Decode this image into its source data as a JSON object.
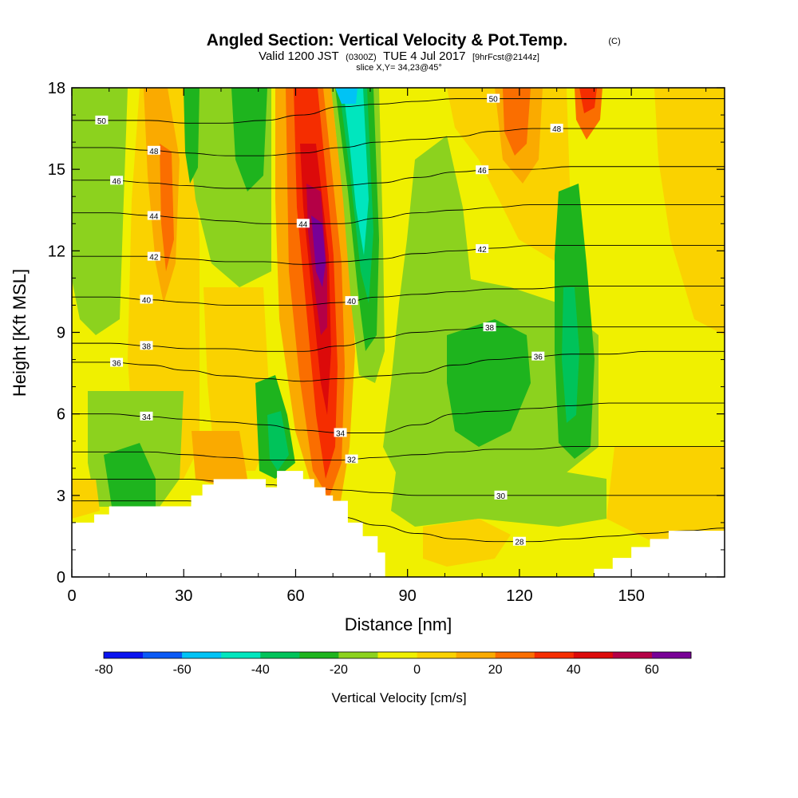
{
  "chart_data": {
    "type": "heatmap",
    "title": "Angled Section: Vertical Velocity & Pot.Temp.",
    "title_mark": "(C)",
    "subtitle_parts": [
      "Valid 1200 JST",
      "(0300Z)",
      "TUE 4 Jul 2017",
      "[9hrFcst@2144z]"
    ],
    "subtitle2": "slice X,Y= 34,23@45°",
    "xlabel": "Distance [nm]",
    "ylabel": "Height [Kft MSL]",
    "xlim": [
      0,
      175
    ],
    "ylim": [
      0,
      18
    ],
    "xticks": [
      "0",
      "30",
      "60",
      "90",
      "120",
      "150"
    ],
    "yticks": [
      "0",
      "3",
      "6",
      "9",
      "12",
      "15",
      "18"
    ],
    "colorbar": {
      "label": "Vertical Velocity [cm/s]",
      "ticks": [
        "-80",
        "-60",
        "-40",
        "-20",
        "0",
        "20",
        "40",
        "60"
      ],
      "min": -80,
      "max": 70,
      "step": 10,
      "colors": [
        "#0a14f0",
        "#0a5af5",
        "#00c3f5",
        "#00e6be",
        "#00c35a",
        "#1eb41e",
        "#8cd21e",
        "#f0f000",
        "#fad200",
        "#faaa00",
        "#fa6e00",
        "#f52d00",
        "#dc0a0a",
        "#b40046",
        "#780096"
      ]
    },
    "theta_contours": [
      {
        "value": 28,
        "label": "28",
        "h": [
          2.8,
          2.8,
          2.8,
          2.8,
          2.7,
          2.6,
          2.4,
          2.2,
          1.9,
          1.6,
          1.4,
          1.3,
          1.3,
          1.4,
          1.5,
          1.6,
          1.7,
          1.8
        ]
      },
      {
        "value": 30,
        "label": "30",
        "h": [
          3.6,
          3.6,
          3.6,
          3.6,
          3.5,
          3.4,
          3.3,
          3.2,
          3.1,
          3.0,
          3.0,
          3.0,
          3.0,
          3.0,
          3.0,
          3.0,
          3.0,
          3.0
        ]
      },
      {
        "value": 32,
        "label": "32",
        "h": [
          4.6,
          4.6,
          4.6,
          4.5,
          4.4,
          4.3,
          4.3,
          4.3,
          4.4,
          4.5,
          4.6,
          4.7,
          4.7,
          4.8,
          4.8,
          4.8,
          4.8,
          4.8
        ]
      },
      {
        "value": 34,
        "label": "34",
        "h": [
          6.0,
          6.0,
          5.9,
          5.8,
          5.7,
          5.6,
          5.4,
          5.3,
          5.3,
          5.6,
          6.0,
          6.1,
          6.2,
          6.3,
          6.4,
          6.4,
          6.4,
          6.4
        ]
      },
      {
        "value": 36,
        "label": "36",
        "h": [
          7.9,
          7.9,
          7.8,
          7.6,
          7.4,
          7.3,
          7.2,
          7.3,
          7.4,
          7.5,
          7.8,
          8.0,
          8.1,
          8.2,
          8.2,
          8.3,
          8.3,
          8.3
        ]
      },
      {
        "value": 38,
        "label": "38",
        "h": [
          8.6,
          8.6,
          8.5,
          8.4,
          8.4,
          8.3,
          8.3,
          8.5,
          8.8,
          9.0,
          9.1,
          9.2,
          9.2,
          9.2,
          9.2,
          9.2,
          9.2,
          9.2
        ]
      },
      {
        "value": 40,
        "label": "40",
        "h": [
          10.3,
          10.3,
          10.2,
          10.1,
          10.0,
          10.0,
          10.0,
          10.1,
          10.3,
          10.4,
          10.5,
          10.6,
          10.6,
          10.7,
          10.7,
          10.7,
          10.7,
          10.7
        ]
      },
      {
        "value": 42,
        "label": "42",
        "h": [
          11.8,
          11.8,
          11.8,
          11.7,
          11.6,
          11.6,
          11.5,
          11.6,
          11.7,
          11.9,
          12.0,
          12.1,
          12.2,
          12.2,
          12.2,
          12.2,
          12.2,
          12.2
        ]
      },
      {
        "value": 44,
        "label": "44",
        "h": [
          13.4,
          13.4,
          13.3,
          13.2,
          13.1,
          13.0,
          13.0,
          13.0,
          13.2,
          13.4,
          13.5,
          13.6,
          13.7,
          13.7,
          13.7,
          13.7,
          13.7,
          13.7
        ]
      },
      {
        "value": 46,
        "label": "46",
        "h": [
          14.6,
          14.6,
          14.5,
          14.4,
          14.3,
          14.3,
          14.3,
          14.4,
          14.5,
          14.7,
          14.9,
          15.0,
          15.0,
          15.1,
          15.1,
          15.1,
          15.1,
          15.1
        ]
      },
      {
        "value": 48,
        "label": "48",
        "h": [
          15.8,
          15.8,
          15.7,
          15.6,
          15.5,
          15.5,
          15.6,
          15.8,
          16.0,
          16.1,
          16.2,
          16.4,
          16.5,
          16.5,
          16.5,
          16.5,
          16.5,
          16.5
        ]
      },
      {
        "value": 50,
        "label": "50",
        "h": [
          16.8,
          16.8,
          16.8,
          16.7,
          16.7,
          16.8,
          17.0,
          17.3,
          17.4,
          17.5,
          17.6,
          17.6,
          17.6,
          17.6,
          17.6,
          17.6,
          17.6,
          17.6
        ]
      }
    ],
    "terrain": [
      [
        0,
        2.0
      ],
      [
        4,
        2.0
      ],
      [
        6,
        2.3
      ],
      [
        10,
        2.6
      ],
      [
        30,
        2.6
      ],
      [
        32,
        3.0
      ],
      [
        35,
        3.4
      ],
      [
        38,
        3.6
      ],
      [
        50,
        3.6
      ],
      [
        52,
        3.3
      ],
      [
        55,
        3.9
      ],
      [
        60,
        3.9
      ],
      [
        62,
        3.6
      ],
      [
        65,
        3.3
      ],
      [
        68,
        3.0
      ],
      [
        70,
        2.8
      ],
      [
        74,
        2.0
      ],
      [
        78,
        1.5
      ],
      [
        82,
        0.9
      ],
      [
        84,
        0.0
      ],
      [
        175,
        0.0
      ]
    ],
    "terrain_right": [
      [
        138,
        0.0
      ],
      [
        140,
        0.3
      ],
      [
        145,
        0.7
      ],
      [
        150,
        1.1
      ],
      [
        155,
        1.4
      ],
      [
        160,
        1.7
      ],
      [
        175,
        1.7
      ]
    ]
  }
}
